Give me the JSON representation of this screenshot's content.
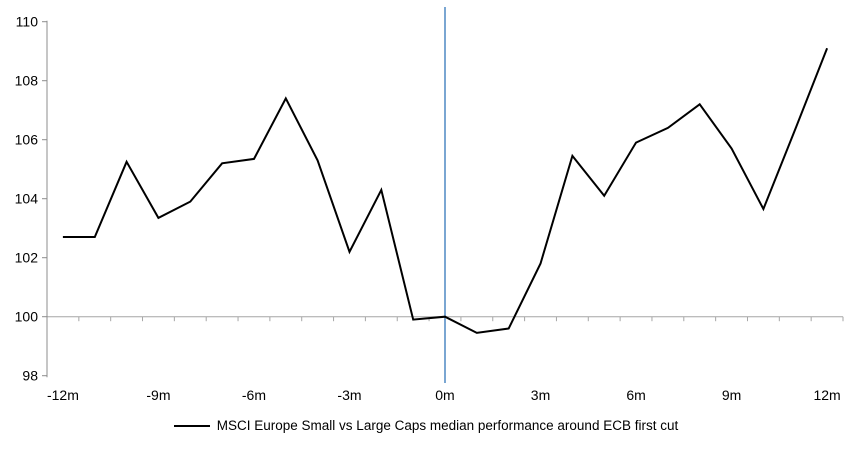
{
  "chart_data": {
    "type": "line",
    "title": "",
    "xlabel": "",
    "ylabel": "",
    "x_unit": "months relative to ECB first cut",
    "x": [
      -12,
      -11,
      -10,
      -9,
      -8,
      -7,
      -6,
      -5,
      -4,
      -3,
      -2,
      -1,
      0,
      1,
      2,
      3,
      4,
      5,
      6,
      7,
      8,
      9,
      10,
      11,
      12
    ],
    "series": [
      {
        "name": "MSCI Europe Small vs Large Caps median performance around ECB first cut",
        "color": "#000000",
        "values": [
          102.7,
          102.7,
          105.25,
          103.35,
          103.9,
          105.2,
          105.35,
          107.4,
          105.3,
          102.2,
          104.3,
          99.9,
          100.0,
          99.45,
          99.6,
          101.8,
          105.45,
          104.1,
          105.9,
          106.4,
          107.2,
          105.7,
          103.65,
          106.35,
          109.1
        ]
      }
    ],
    "ylim": [
      98,
      110
    ],
    "yticks": [
      98,
      100,
      102,
      104,
      106,
      108,
      110
    ],
    "ytick_labels": [
      "98",
      "100",
      "102",
      "104",
      "106",
      "108",
      "110"
    ],
    "x_axis_labels": [
      {
        "month": -12,
        "label": "-12m"
      },
      {
        "month": -9,
        "label": "-9m"
      },
      {
        "month": -6,
        "label": "-6m"
      },
      {
        "month": -3,
        "label": "-3m"
      },
      {
        "month": 0,
        "label": "0m"
      },
      {
        "month": 3,
        "label": "3m"
      },
      {
        "month": 6,
        "label": "6m"
      },
      {
        "month": 9,
        "label": "9m"
      },
      {
        "month": 12,
        "label": "12m"
      }
    ],
    "baseline_value": 100,
    "event_line": {
      "month": 0,
      "color": "#7AA6D2"
    },
    "grid": false,
    "legend_position": "bottom-center",
    "axis_color": "#8C8C8C",
    "baseline_color": "#A6A6A6",
    "label_color": "#000000"
  },
  "legend": {
    "label": "MSCI Europe Small vs Large Caps median performance around ECB first cut"
  }
}
